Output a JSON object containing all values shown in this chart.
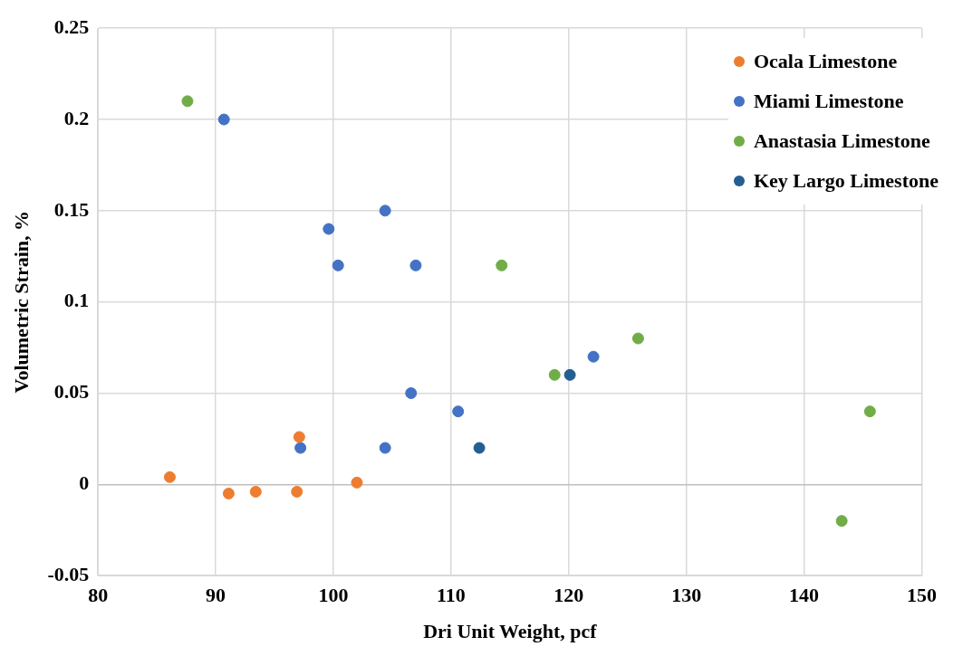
{
  "chart_data": {
    "type": "scatter",
    "xlabel": "Dri Unit Weight, pcf",
    "ylabel": "Volumetric Strain, %",
    "xlim": [
      80,
      150
    ],
    "xticks": [
      80,
      90,
      100,
      110,
      120,
      130,
      140,
      150
    ],
    "ylim": [
      -0.05,
      0.25
    ],
    "yticks": [
      -0.05,
      0,
      0.05,
      0.1,
      0.15,
      0.2,
      0.25
    ],
    "grid": true,
    "legend": "top right",
    "marker": "circle",
    "series": [
      {
        "name": "Ocala Limestone",
        "color": "#ed7d31",
        "x": [
          86.1,
          91.1,
          93.4,
          96.9,
          97.1,
          102.0
        ],
        "values": [
          0.004,
          -0.005,
          -0.004,
          -0.004,
          0.026,
          0.001
        ]
      },
      {
        "name": "Miami Limestone",
        "color": "#4472c4",
        "x": [
          90.7,
          99.6,
          100.4,
          104.4,
          107.0,
          106.6,
          110.6,
          104.4,
          97.2,
          122.1
        ],
        "values": [
          0.2,
          0.14,
          0.12,
          0.15,
          0.12,
          0.05,
          0.04,
          0.02,
          0.02,
          0.07
        ]
      },
      {
        "name": "Anastasia Limestone",
        "color": "#70ad47",
        "x": [
          87.6,
          114.3,
          118.8,
          125.9,
          145.6,
          143.2
        ],
        "values": [
          0.21,
          0.12,
          0.06,
          0.08,
          0.04,
          -0.02
        ]
      },
      {
        "name": "Key Largo Limestone",
        "color": "#255e91",
        "x": [
          120.1,
          112.4
        ],
        "values": [
          0.06,
          0.02
        ]
      }
    ]
  }
}
